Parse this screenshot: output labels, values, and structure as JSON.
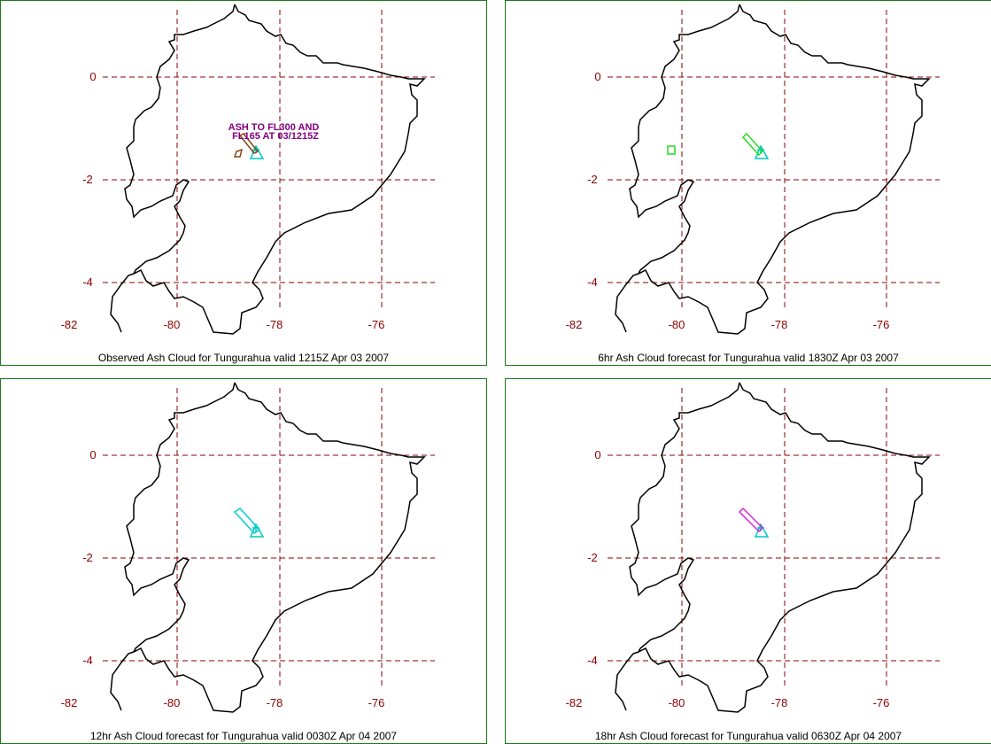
{
  "colors": {
    "panel_border": "#1a7a1a",
    "grid": "#8b0000",
    "tick_label": "#8b0000",
    "coast": "#000000",
    "volcano_marker": "#00c8c8",
    "observed_ash": "#8b4513",
    "annotation": "#800080",
    "forecast_6hr": "#22dd22",
    "forecast_12hr": "#00d0d0",
    "forecast_18hr": "#dd22dd"
  },
  "axes": {
    "lat_ticks": [
      "0",
      "-2",
      "-4"
    ],
    "lon_ticks": [
      "-82",
      "-80",
      "-78",
      "-76"
    ]
  },
  "panels": [
    {
      "caption": "Observed Ash Cloud for Tungurahua valid 1215Z Apr 03 2007",
      "annotation_line1": "ASH TO FL300 AND",
      "annotation_line2": "FL165 AT 03/1215Z",
      "ash_color_key": "observed_ash"
    },
    {
      "caption": "6hr Ash Cloud forecast for Tungurahua valid 1830Z Apr 03 2007",
      "ash_color_key": "forecast_6hr"
    },
    {
      "caption": "12hr Ash Cloud forecast for Tungurahua valid 0030Z Apr 04 2007",
      "ash_color_key": "forecast_12hr"
    },
    {
      "caption": "18hr Ash Cloud forecast for Tungurahua valid 0630Z Apr 04 2007",
      "ash_color_key": "forecast_18hr"
    }
  ]
}
